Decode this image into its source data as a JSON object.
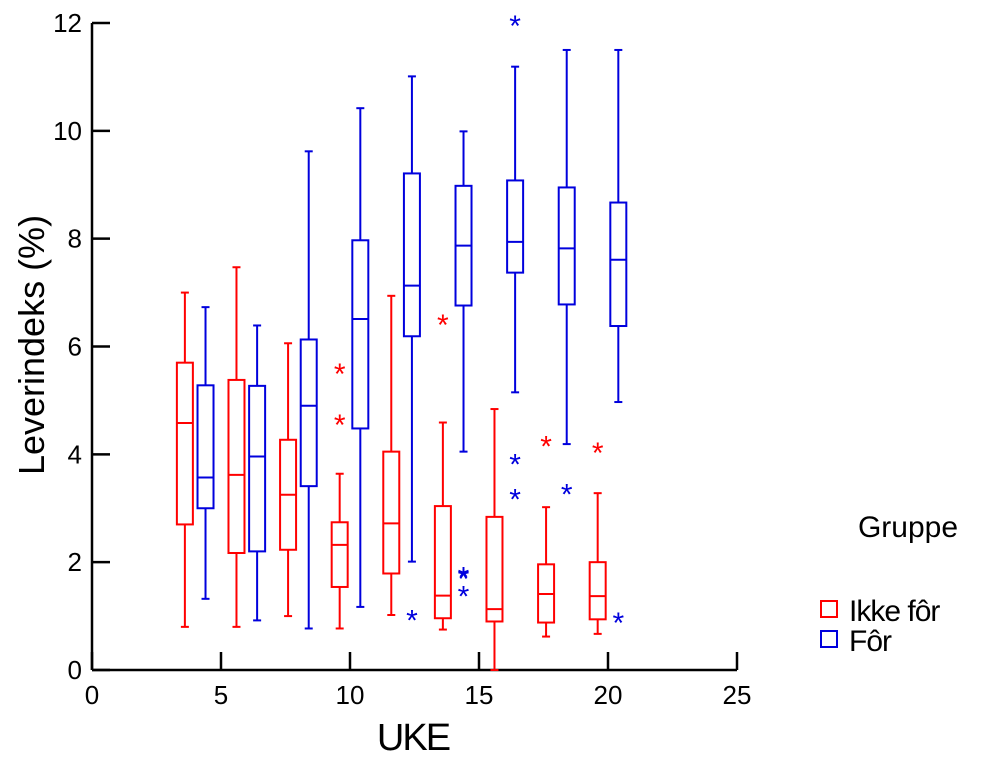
{
  "chart_data": {
    "type": "boxplot",
    "xlabel": "UKE",
    "ylabel": "Leverindeks (%)",
    "xlim": [
      0,
      25
    ],
    "ylim": [
      0,
      12
    ],
    "x_ticks": [
      0,
      5,
      10,
      15,
      20,
      25
    ],
    "y_ticks": [
      0,
      2,
      4,
      6,
      8,
      10,
      12
    ],
    "grid": false,
    "legend": {
      "title": "Gruppe",
      "placement": "right"
    },
    "series": [
      {
        "name": "Ikke fôr",
        "color": "#ff0000",
        "boxes": [
          {
            "x": 3.6,
            "whisker_low": 0.8,
            "q1": 2.7,
            "median": 4.58,
            "q3": 5.7,
            "whisker_high": 7.0,
            "outliers": []
          },
          {
            "x": 5.6,
            "whisker_low": 0.8,
            "q1": 2.17,
            "median": 3.62,
            "q3": 5.38,
            "whisker_high": 7.47,
            "outliers": []
          },
          {
            "x": 7.6,
            "whisker_low": 1.0,
            "q1": 2.23,
            "median": 3.25,
            "q3": 4.27,
            "whisker_high": 6.06,
            "outliers": []
          },
          {
            "x": 9.6,
            "whisker_low": 0.77,
            "q1": 1.54,
            "median": 2.32,
            "q3": 2.74,
            "whisker_high": 3.64,
            "outliers": [
              5.55,
              4.6
            ]
          },
          {
            "x": 11.6,
            "whisker_low": 1.02,
            "q1": 1.79,
            "median": 2.72,
            "q3": 4.05,
            "whisker_high": 6.94,
            "outliers": []
          },
          {
            "x": 13.6,
            "whisker_low": 0.75,
            "q1": 0.96,
            "median": 1.38,
            "q3": 3.04,
            "whisker_high": 4.59,
            "outliers": [
              6.45
            ]
          },
          {
            "x": 15.6,
            "whisker_low": 0.0,
            "q1": 0.9,
            "median": 1.13,
            "q3": 2.84,
            "whisker_high": 4.84,
            "outliers": []
          },
          {
            "x": 17.6,
            "whisker_low": 0.62,
            "q1": 0.88,
            "median": 1.41,
            "q3": 1.96,
            "whisker_high": 3.02,
            "outliers": [
              4.2
            ]
          },
          {
            "x": 19.6,
            "whisker_low": 0.67,
            "q1": 0.94,
            "median": 1.37,
            "q3": 2.0,
            "whisker_high": 3.28,
            "outliers": [
              4.08
            ]
          }
        ]
      },
      {
        "name": "Fôr",
        "color": "#0000dd",
        "boxes": [
          {
            "x": 4.4,
            "whisker_low": 1.32,
            "q1": 3.0,
            "median": 3.57,
            "q3": 5.28,
            "whisker_high": 6.73,
            "outliers": []
          },
          {
            "x": 6.4,
            "whisker_low": 0.92,
            "q1": 2.2,
            "median": 3.96,
            "q3": 5.27,
            "whisker_high": 6.39,
            "outliers": []
          },
          {
            "x": 8.4,
            "whisker_low": 0.77,
            "q1": 3.41,
            "median": 4.9,
            "q3": 6.13,
            "whisker_high": 9.62,
            "outliers": []
          },
          {
            "x": 10.4,
            "whisker_low": 1.17,
            "q1": 4.48,
            "median": 6.51,
            "q3": 7.97,
            "whisker_high": 10.42,
            "outliers": []
          },
          {
            "x": 12.4,
            "whisker_low": 2.01,
            "q1": 6.19,
            "median": 7.13,
            "q3": 9.21,
            "whisker_high": 11.01,
            "outliers": [
              0.97
            ]
          },
          {
            "x": 14.4,
            "whisker_low": 4.05,
            "q1": 6.76,
            "median": 7.87,
            "q3": 8.98,
            "whisker_high": 9.99,
            "outliers": [
              1.77,
              1.74,
              1.42
            ]
          },
          {
            "x": 16.4,
            "whisker_low": 5.15,
            "q1": 7.37,
            "median": 7.94,
            "q3": 9.08,
            "whisker_high": 11.19,
            "outliers": [
              12.0,
              3.87,
              3.22
            ]
          },
          {
            "x": 18.4,
            "whisker_low": 4.19,
            "q1": 6.78,
            "median": 7.82,
            "q3": 8.95,
            "whisker_high": 11.5,
            "outliers": [
              3.31
            ]
          },
          {
            "x": 20.4,
            "whisker_low": 4.97,
            "q1": 6.38,
            "median": 7.61,
            "q3": 8.67,
            "whisker_high": 11.5,
            "outliers": [
              0.93
            ]
          }
        ]
      }
    ]
  }
}
